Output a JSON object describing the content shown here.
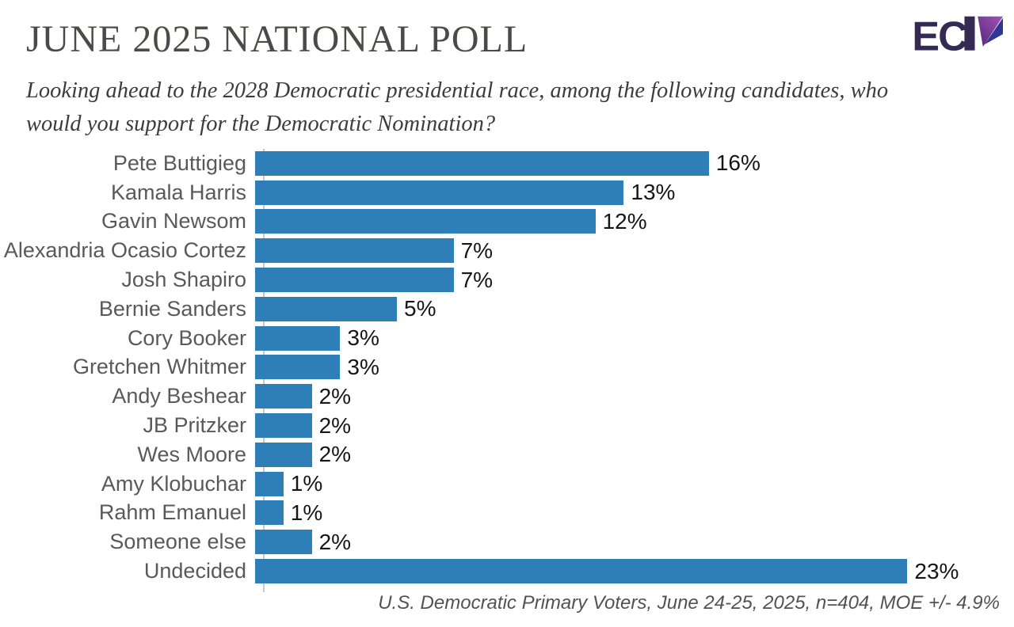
{
  "header": {
    "title": "JUNE 2025 NATIONAL POLL",
    "logo": {
      "text": "EC",
      "name": "ECP logo"
    }
  },
  "subtitle": {
    "line1": "Looking ahead to the 2028 Democratic presidential race, among the following candidates, who",
    "line2": "would you support for the Democratic Nomination?"
  },
  "chart_data": {
    "type": "bar",
    "orientation": "horizontal",
    "title": "",
    "xlabel": "",
    "ylabel": "",
    "xlim": [
      0,
      23
    ],
    "grid": false,
    "legend": false,
    "bar_color": "#2e7eb7",
    "categories": [
      "Pete Buttigieg",
      "Kamala Harris",
      "Gavin Newsom",
      "Alexandria Ocasio Cortez",
      "Josh Shapiro",
      "Bernie Sanders",
      "Cory Booker",
      "Gretchen Whitmer",
      "Andy Beshear",
      "JB Pritzker",
      "Wes Moore",
      "Amy Klobuchar",
      "Rahm Emanuel",
      "Someone else",
      "Undecided"
    ],
    "values": [
      16,
      13,
      12,
      7,
      7,
      5,
      3,
      3,
      2,
      2,
      2,
      1,
      1,
      2,
      23
    ],
    "value_labels": [
      "16%",
      "13%",
      "12%",
      "7%",
      "7%",
      "5%",
      "3%",
      "3%",
      "2%",
      "2%",
      "2%",
      "1%",
      "1%",
      "2%",
      "23%"
    ]
  },
  "footer": {
    "source": "U.S. Democratic Primary Voters, June 24-25, 2025, n=404, MOE +/- 4.9%"
  },
  "colors": {
    "bar": "#2e7eb7",
    "axis": "#c7c7c7",
    "title_text": "#4c4a47",
    "label_text": "#595959",
    "value_text": "#161616",
    "logo_dark_purple": "#352a54",
    "logo_magenta_top": "#a052b8",
    "logo_magenta_bottom": "#5c2a7d",
    "logo_navy": "#2f3694"
  }
}
